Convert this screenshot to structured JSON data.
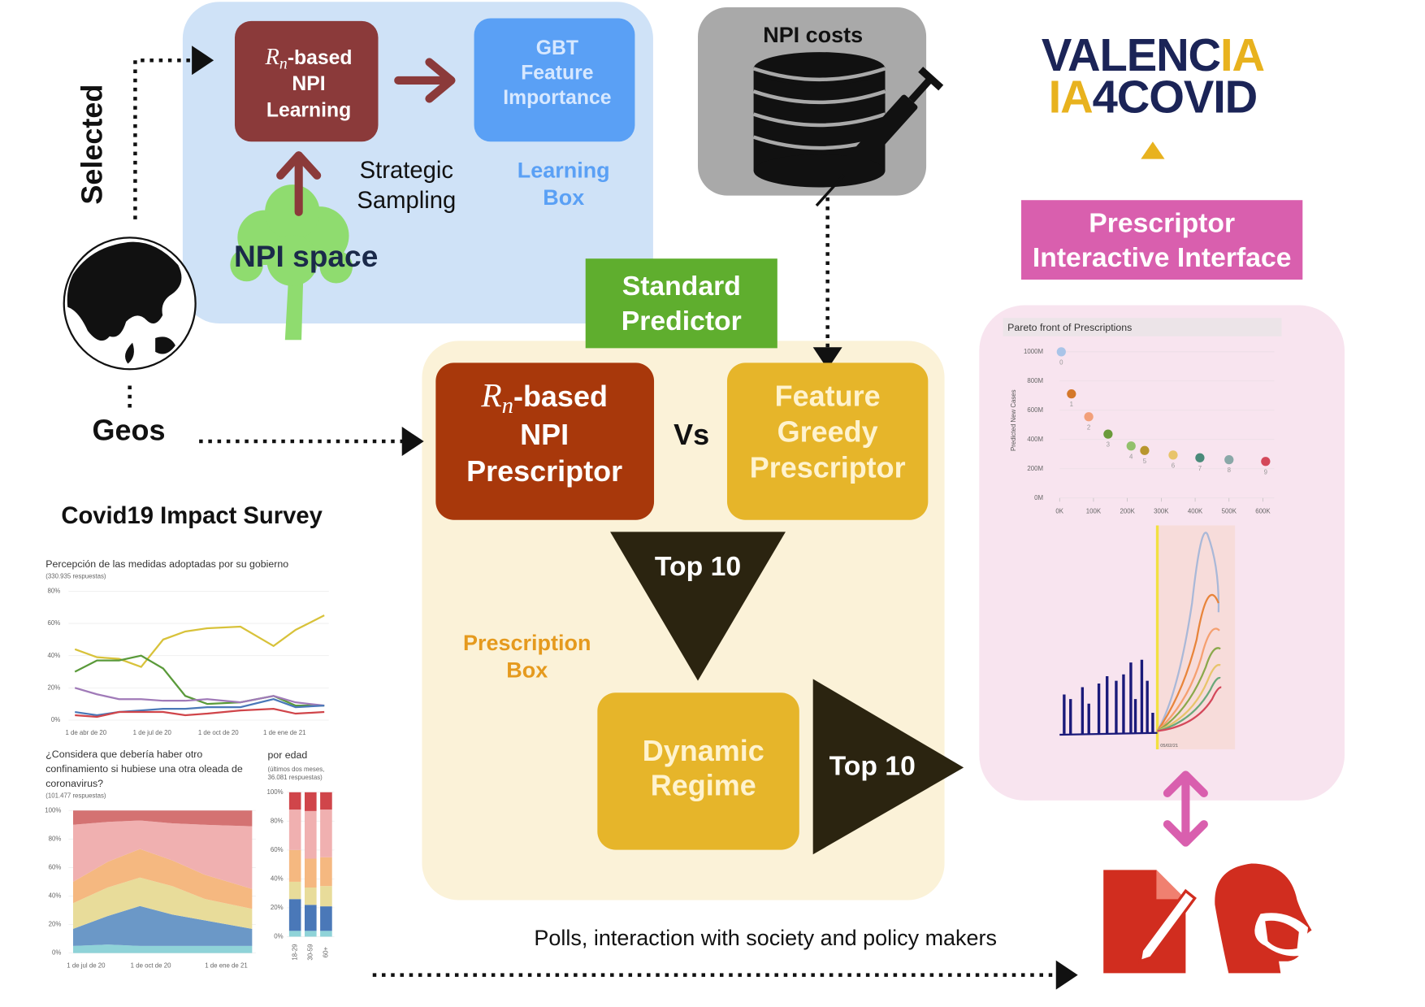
{
  "learning": {
    "rn_learning": {
      "symbol": "R",
      "subscript": "n",
      "suffix": "-based",
      "lines": [
        "NPI",
        "Learning"
      ]
    },
    "gbt": [
      "GBT",
      "Feature",
      "Importance"
    ],
    "strategic": [
      "Strategic",
      "Sampling"
    ],
    "box_label": [
      "Learning",
      "Box"
    ],
    "npi_space": "NPI space"
  },
  "selected": "Selected",
  "geos": "Geos",
  "npi_costs": "NPI costs",
  "logo": {
    "line1": [
      "VALENC",
      "IA"
    ],
    "line2": [
      "IA",
      "4COVID"
    ]
  },
  "interface_label": [
    "Prescriptor",
    "Interactive Interface"
  ],
  "pareto": {
    "title": "Pareto front of Prescriptions",
    "y_label": "Predicted New Cases",
    "xlim": [
      0,
      620000
    ],
    "ylim": [
      0,
      1050000000
    ],
    "xticks": [
      {
        "value": 0,
        "label": "0K"
      },
      {
        "value": 100000,
        "label": "100K"
      },
      {
        "value": 200000,
        "label": "200K"
      },
      {
        "value": 300000,
        "label": "300K"
      },
      {
        "value": 400000,
        "label": "400K"
      },
      {
        "value": 500000,
        "label": "500K"
      },
      {
        "value": 600000,
        "label": "600K"
      }
    ],
    "yticks": [
      {
        "value": 0,
        "label": "0M"
      },
      {
        "value": 200000000,
        "label": "200M"
      },
      {
        "value": 400000000,
        "label": "400M"
      },
      {
        "value": 600000000,
        "label": "600M"
      },
      {
        "value": 800000000,
        "label": "800M"
      },
      {
        "value": 1000000000,
        "label": "1000M"
      }
    ],
    "x": [
      5000,
      35000,
      86000,
      143000,
      211000,
      251000,
      335000,
      414000,
      500000,
      608000
    ],
    "y": [
      1000000000,
      712000000,
      556000000,
      437000000,
      356000000,
      325000000,
      294000000,
      275000000,
      262000000,
      250000000
    ],
    "labels": [
      "0",
      "1",
      "2",
      "3",
      "4",
      "5",
      "6",
      "7",
      "8",
      "9"
    ],
    "colors": [
      "#a9c4e8",
      "#d4782a",
      "#f2a07a",
      "#6a9a3a",
      "#92c06c",
      "#b8962e",
      "#e8c46a",
      "#4a8a7a",
      "#8aa8a8",
      "#d4485a"
    ]
  },
  "forecast_date": "05/02/21",
  "standard_predictor": [
    "Standard",
    "Predictor"
  ],
  "rn_prescriptor": {
    "symbol": "R",
    "subscript": "n",
    "suffix": "-based",
    "lines": [
      "NPI",
      "Prescriptor"
    ]
  },
  "vs": "Vs",
  "greedy": [
    "Feature",
    "Greedy",
    "Prescriptor"
  ],
  "top10_a": "Top 10",
  "top10_b": "Top 10",
  "prescription_box": [
    "Prescription",
    "Box"
  ],
  "dynamic": [
    "Dynamic",
    "Regime"
  ],
  "polls": "Polls, interaction with society and policy makers",
  "survey": {
    "title": "Covid19 Impact Survey",
    "line_chart": {
      "title": "Percepción de las medidas adoptadas por su gobierno",
      "subtitle": "(330.935 respuestas)",
      "xlim": [
        -0.5,
        10.8
      ],
      "ylim": [
        0,
        80
      ],
      "xticks": [
        {
          "value": 0,
          "label": "1 de abr de 20"
        },
        {
          "value": 3,
          "label": "1 de jul de 20"
        },
        {
          "value": 6,
          "label": "1 de oct de 20"
        },
        {
          "value": 9,
          "label": "1 de ene de 21"
        }
      ],
      "yticks": [
        {
          "value": 0,
          "label": "0%"
        },
        {
          "value": 20,
          "label": "20%"
        },
        {
          "value": 40,
          "label": "40%"
        },
        {
          "value": 60,
          "label": "60%"
        },
        {
          "value": 80,
          "label": "80%"
        }
      ],
      "x": [
        -0.5,
        0.5,
        1.5,
        2.5,
        3.5,
        4.5,
        5.5,
        7,
        8.5,
        9.5,
        10.8
      ],
      "series": [
        {
          "color": "#d8c23a",
          "values": [
            44,
            39,
            38,
            33,
            50,
            55,
            57,
            58,
            46,
            56,
            65
          ]
        },
        {
          "color": "#5a9a3a",
          "values": [
            30,
            37,
            37,
            40,
            32,
            15,
            10,
            11,
            15,
            9,
            9
          ]
        },
        {
          "color": "#a07ab8",
          "values": [
            20,
            16,
            13,
            13,
            12,
            12,
            13,
            11,
            15,
            11,
            9
          ]
        },
        {
          "color": "#4a78b8",
          "values": [
            5,
            3,
            5,
            6,
            7,
            7,
            8,
            8,
            13,
            8,
            9
          ]
        },
        {
          "color": "#d0454a",
          "values": [
            3,
            2,
            5,
            5,
            5,
            3,
            4,
            6,
            7,
            4,
            5
          ]
        }
      ]
    },
    "area_chart": {
      "title": [
        "¿Considera que debería haber otro",
        "confinamiento si hubiese una otra oleada de",
        "coronavirus?"
      ],
      "subtitle": "(101.477 respuestas)",
      "xlim": [
        -0.6,
        7.7
      ],
      "ylim": [
        0,
        100
      ],
      "xticks": [
        {
          "value": 0,
          "label": "1 de jul de 20"
        },
        {
          "value": 3,
          "label": "1 de oct de 20"
        },
        {
          "value": 6.5,
          "label": "1 de ene de 21"
        }
      ],
      "yticks": [
        {
          "value": 0,
          "label": "0%"
        },
        {
          "value": 20,
          "label": "20%"
        },
        {
          "value": 40,
          "label": "40%"
        },
        {
          "value": 60,
          "label": "60%"
        },
        {
          "value": 80,
          "label": "80%"
        },
        {
          "value": 100,
          "label": "100%"
        }
      ],
      "x": [
        -0.6,
        1,
        2.5,
        4,
        5.5,
        7.7
      ],
      "series": [
        {
          "color": "#8fd3d8",
          "values": [
            5,
            6,
            5,
            5,
            5,
            5
          ]
        },
        {
          "color": "#6b98c7",
          "values": [
            12,
            20,
            28,
            22,
            18,
            12
          ]
        },
        {
          "color": "#e8dc9a",
          "values": [
            18,
            20,
            20,
            20,
            15,
            14
          ]
        },
        {
          "color": "#f5b880",
          "values": [
            15,
            18,
            20,
            18,
            17,
            14
          ]
        },
        {
          "color": "#f0b0b0",
          "values": [
            40,
            28,
            20,
            26,
            35,
            44
          ]
        },
        {
          "color": "#d47272",
          "values": [
            10,
            8,
            7,
            9,
            10,
            11
          ]
        }
      ]
    },
    "bar_chart": {
      "title": "por edad",
      "subtitle": [
        "(últimos dos meses,",
        "36.081 respuestas)"
      ],
      "categories": [
        "18-29",
        "30-59",
        "60+"
      ],
      "ylim": [
        0,
        100
      ],
      "yticks": [
        {
          "value": 0,
          "label": "0%"
        },
        {
          "value": 20,
          "label": "20%"
        },
        {
          "value": 40,
          "label": "40%"
        },
        {
          "value": 60,
          "label": "60%"
        },
        {
          "value": 80,
          "label": "80%"
        },
        {
          "value": 100,
          "label": "100%"
        }
      ],
      "series": [
        {
          "color": "#8fd3d8",
          "values": [
            4,
            4,
            4
          ]
        },
        {
          "color": "#4a78b8",
          "values": [
            22,
            18,
            17
          ]
        },
        {
          "color": "#e8dc9a",
          "values": [
            12,
            12,
            14
          ]
        },
        {
          "color": "#f5b880",
          "values": [
            22,
            20,
            20
          ]
        },
        {
          "color": "#f0b0b0",
          "values": [
            28,
            33,
            33
          ]
        },
        {
          "color": "#d0454a",
          "values": [
            12,
            13,
            12
          ]
        }
      ]
    }
  }
}
